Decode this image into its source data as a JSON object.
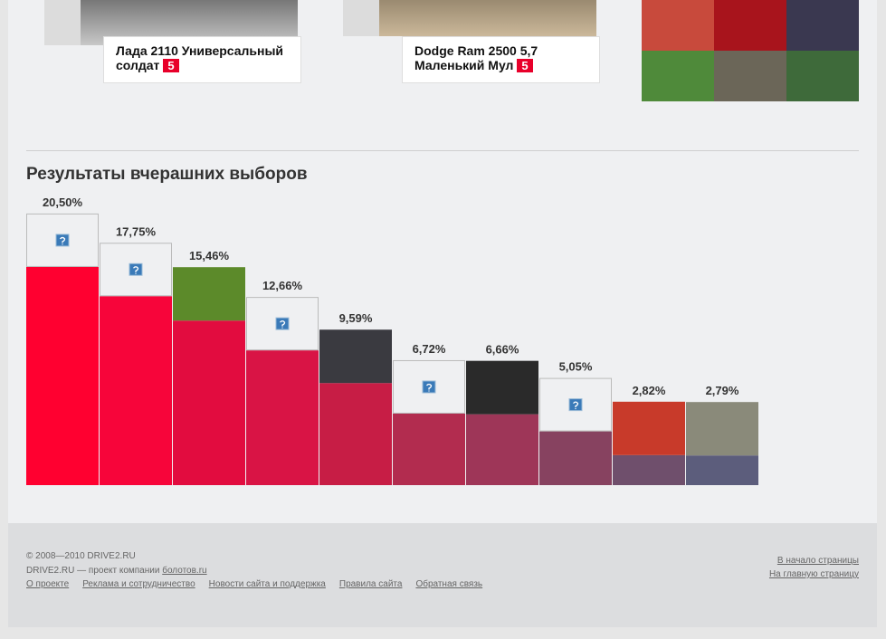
{
  "cards": [
    {
      "title": "Лада 2110 Универсальный солдат",
      "badge": 5
    },
    {
      "title": "Dodge Ram 2500 5,7 Маленький Мул",
      "badge": 5
    }
  ],
  "section_title": "Результаты вчерашних выборов",
  "chart_data": {
    "type": "bar",
    "values": [
      20.5,
      17.75,
      15.46,
      12.66,
      9.59,
      6.72,
      6.66,
      5.05,
      2.82,
      2.79
    ],
    "value_labels": [
      "20,50%",
      "17,75%",
      "15,46%",
      "12,66%",
      "9,59%",
      "6,72%",
      "6,66%",
      "5,05%",
      "2,82%",
      "2,79%"
    ],
    "colors": [
      "#ff0030",
      "#f7053a",
      "#e20c3f",
      "#d91445",
      "#c71d45",
      "#b22c4f",
      "#9e3658",
      "#874260",
      "#6f4f6c",
      "#5c5d7c"
    ]
  },
  "footer": {
    "copyright": "© 2008—2010 DRIVE2.RU",
    "company_text": "DRIVE2.RU — проект компании",
    "company_link": "болотов.ru",
    "links": [
      "О проекте",
      "Реклама и сотрудничество",
      "Новости сайта и поддержка",
      "Правила сайта",
      "Обратная связь"
    ],
    "right_links": [
      "В начало страницы",
      "На главную страницу"
    ]
  }
}
